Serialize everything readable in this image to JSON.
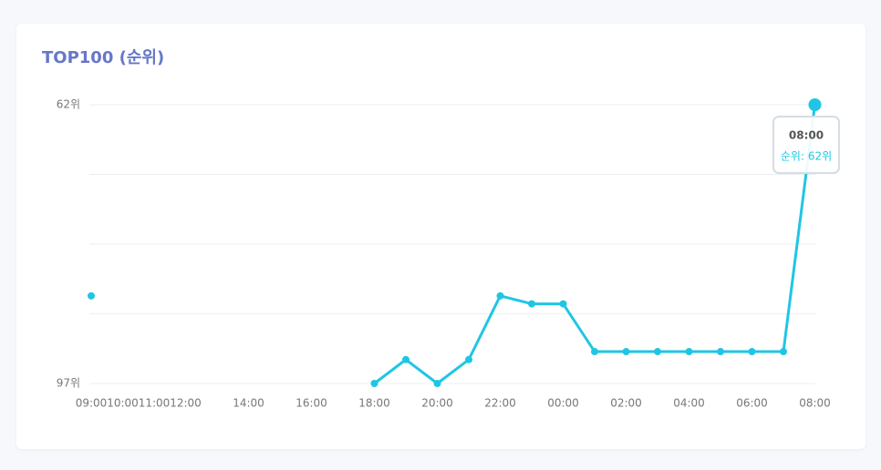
{
  "chart_data": {
    "type": "line",
    "title": "TOP100 (순위)",
    "categories": [
      "09:00",
      "10:00",
      "11:00",
      "12:00",
      null,
      "14:00",
      null,
      "16:00",
      null,
      "18:00",
      null,
      "20:00",
      null,
      "22:00",
      null,
      "00:00",
      null,
      "02:00",
      null,
      "04:00",
      null,
      "06:00",
      null,
      "08:00"
    ],
    "series": [
      {
        "name": "순위",
        "color": "#1fc6e3",
        "values": [
          86,
          null,
          null,
          null,
          null,
          null,
          null,
          null,
          null,
          97,
          94,
          97,
          94,
          86,
          87,
          87,
          93,
          93,
          93,
          93,
          93,
          93,
          93,
          62
        ]
      }
    ],
    "ylim": [
      97,
      62
    ],
    "yticks": [
      {
        "value": 62,
        "label": "62위"
      },
      {
        "value": 97,
        "label": "97위"
      }
    ],
    "ygrid": [
      62,
      70.75,
      79.5,
      88.25,
      97
    ],
    "grid": true,
    "tooltip": {
      "title": "08:00",
      "text": "순위: 62위"
    }
  }
}
